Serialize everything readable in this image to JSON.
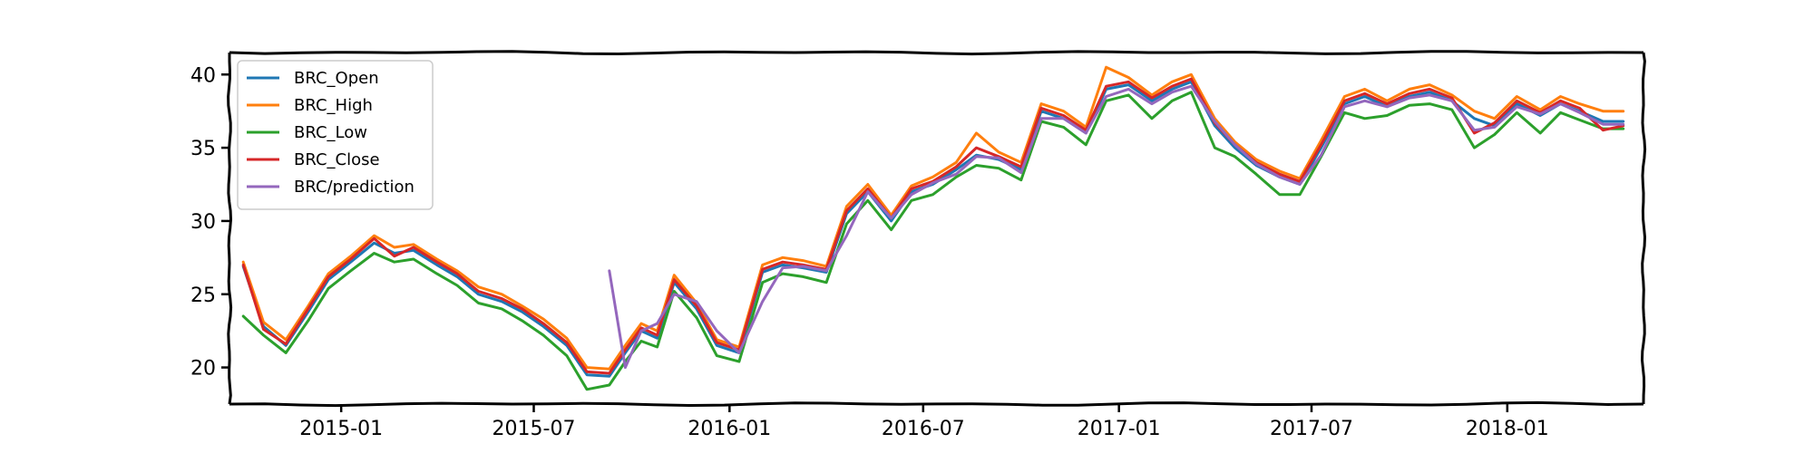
{
  "chart_data": {
    "type": "line",
    "style": "xkcd",
    "title": "",
    "xlabel": "",
    "ylabel": "",
    "xlim": [
      "2014-09-18",
      "2018-05-09"
    ],
    "ylim": [
      17.5,
      41.5
    ],
    "xticks": [
      {
        "date": "2015-01-01",
        "label": "2015-01"
      },
      {
        "date": "2015-07-01",
        "label": "2015-07"
      },
      {
        "date": "2016-01-01",
        "label": "2016-01"
      },
      {
        "date": "2016-07-01",
        "label": "2016-07"
      },
      {
        "date": "2017-01-01",
        "label": "2017-01"
      },
      {
        "date": "2017-07-01",
        "label": "2017-07"
      },
      {
        "date": "2018-01-01",
        "label": "2018-01"
      }
    ],
    "yticks": [
      20,
      25,
      30,
      35,
      40
    ],
    "grid": false,
    "legend": {
      "position": "top-left"
    },
    "x": [
      "2014-10-01",
      "2014-10-20",
      "2014-11-10",
      "2014-12-01",
      "2014-12-20",
      "2015-01-10",
      "2015-02-01",
      "2015-02-20",
      "2015-03-10",
      "2015-04-01",
      "2015-04-20",
      "2015-05-10",
      "2015-06-01",
      "2015-06-20",
      "2015-07-10",
      "2015-08-01",
      "2015-08-20",
      "2015-09-10",
      "2015-09-25",
      "2015-10-10",
      "2015-10-25",
      "2015-11-10",
      "2015-12-01",
      "2015-12-20",
      "2016-01-10",
      "2016-02-01",
      "2016-02-20",
      "2016-03-10",
      "2016-04-01",
      "2016-04-20",
      "2016-05-10",
      "2016-06-01",
      "2016-06-20",
      "2016-07-10",
      "2016-08-01",
      "2016-08-20",
      "2016-09-10",
      "2016-10-01",
      "2016-10-20",
      "2016-11-10",
      "2016-12-01",
      "2016-12-20",
      "2017-01-10",
      "2017-02-01",
      "2017-02-20",
      "2017-03-10",
      "2017-04-01",
      "2017-04-20",
      "2017-05-10",
      "2017-06-01",
      "2017-06-20",
      "2017-07-10",
      "2017-08-01",
      "2017-08-20",
      "2017-09-10",
      "2017-10-01",
      "2017-10-20",
      "2017-11-10",
      "2017-12-01",
      "2017-12-20",
      "2018-01-10",
      "2018-02-01",
      "2018-02-20",
      "2018-03-10",
      "2018-04-01",
      "2018-04-20"
    ],
    "series": [
      {
        "name": "BRC_Open",
        "color": "#1f77b4",
        "values": [
          26.9,
          22.8,
          21.5,
          23.8,
          26.0,
          27.2,
          28.5,
          27.8,
          28.0,
          27.0,
          26.2,
          25.0,
          24.5,
          23.8,
          22.8,
          21.5,
          19.5,
          19.4,
          21.0,
          22.5,
          22.0,
          25.8,
          24.0,
          21.5,
          21.0,
          26.5,
          27.0,
          26.8,
          26.5,
          30.5,
          32.0,
          30.0,
          32.0,
          32.5,
          33.5,
          34.5,
          34.2,
          33.5,
          37.5,
          37.0,
          36.0,
          39.0,
          39.3,
          38.2,
          39.0,
          39.5,
          36.5,
          35.0,
          33.8,
          33.0,
          32.5,
          35.0,
          38.0,
          38.5,
          37.8,
          38.5,
          38.8,
          38.2,
          37.0,
          36.5,
          38.0,
          37.2,
          38.0,
          37.5,
          36.8,
          36.8
        ]
      },
      {
        "name": "BRC_High",
        "color": "#ff7f0e",
        "values": [
          27.2,
          23.1,
          21.9,
          24.2,
          26.4,
          27.6,
          29.0,
          28.2,
          28.4,
          27.4,
          26.6,
          25.5,
          25.0,
          24.2,
          23.3,
          22.0,
          20.0,
          19.9,
          21.5,
          23.0,
          22.5,
          26.3,
          24.4,
          21.9,
          21.4,
          27.0,
          27.5,
          27.3,
          26.9,
          31.0,
          32.5,
          30.4,
          32.4,
          33.0,
          34.0,
          36.0,
          34.7,
          34.0,
          38.0,
          37.5,
          36.4,
          40.5,
          39.8,
          38.6,
          39.5,
          40.0,
          37.0,
          35.4,
          34.2,
          33.4,
          32.9,
          35.5,
          38.5,
          39.0,
          38.2,
          39.0,
          39.3,
          38.6,
          37.5,
          37.0,
          38.5,
          37.6,
          38.5,
          38.0,
          37.5,
          37.5
        ]
      },
      {
        "name": "BRC_Low",
        "color": "#2ca02c",
        "values": [
          23.5,
          22.2,
          21.0,
          23.2,
          25.4,
          26.6,
          27.8,
          27.2,
          27.4,
          26.4,
          25.6,
          24.4,
          24.0,
          23.2,
          22.2,
          20.8,
          18.5,
          18.8,
          20.4,
          21.8,
          21.4,
          25.2,
          23.4,
          20.8,
          20.4,
          25.8,
          26.4,
          26.2,
          25.8,
          29.8,
          31.4,
          29.4,
          31.4,
          31.8,
          33.0,
          33.8,
          33.6,
          32.8,
          36.8,
          36.4,
          35.2,
          38.2,
          38.6,
          37.0,
          38.2,
          38.8,
          35.0,
          34.4,
          33.2,
          31.8,
          31.8,
          34.4,
          37.4,
          37.0,
          37.2,
          37.9,
          38.0,
          37.6,
          35.0,
          35.9,
          37.4,
          36.0,
          37.4,
          36.9,
          36.3,
          36.3
        ]
      },
      {
        "name": "BRC_Close",
        "color": "#d62728",
        "values": [
          27.0,
          22.6,
          21.6,
          24.0,
          26.2,
          27.4,
          28.8,
          27.6,
          28.2,
          27.2,
          26.4,
          25.2,
          24.7,
          24.0,
          23.0,
          21.7,
          19.7,
          19.6,
          21.2,
          22.7,
          22.2,
          26.0,
          24.2,
          21.7,
          21.2,
          26.7,
          27.2,
          27.0,
          26.7,
          30.7,
          32.2,
          30.2,
          32.2,
          32.7,
          33.7,
          35.0,
          34.4,
          33.7,
          37.7,
          37.2,
          36.2,
          39.2,
          39.5,
          38.4,
          39.2,
          39.7,
          36.7,
          35.2,
          34.0,
          33.2,
          32.7,
          35.2,
          38.2,
          38.7,
          38.0,
          38.7,
          39.0,
          38.4,
          36.0,
          36.7,
          38.2,
          37.4,
          38.2,
          37.7,
          36.2,
          36.5
        ]
      },
      {
        "name": "BRC/prediction",
        "color": "#9467bd",
        "values": [
          null,
          null,
          null,
          null,
          null,
          null,
          null,
          null,
          null,
          null,
          null,
          null,
          null,
          null,
          null,
          null,
          null,
          26.6,
          20.0,
          22.5,
          23.0,
          25.0,
          24.5,
          22.5,
          21.0,
          24.5,
          26.8,
          26.9,
          26.6,
          29.0,
          32.0,
          30.2,
          31.8,
          32.6,
          33.2,
          34.4,
          34.3,
          33.3,
          37.0,
          37.0,
          36.0,
          38.5,
          39.0,
          38.0,
          38.8,
          39.2,
          36.8,
          35.2,
          33.9,
          33.0,
          32.5,
          34.5,
          37.8,
          38.2,
          37.8,
          38.4,
          38.6,
          38.2,
          36.2,
          36.4,
          37.8,
          37.3,
          38.0,
          37.4,
          36.6,
          36.6
        ]
      }
    ]
  }
}
